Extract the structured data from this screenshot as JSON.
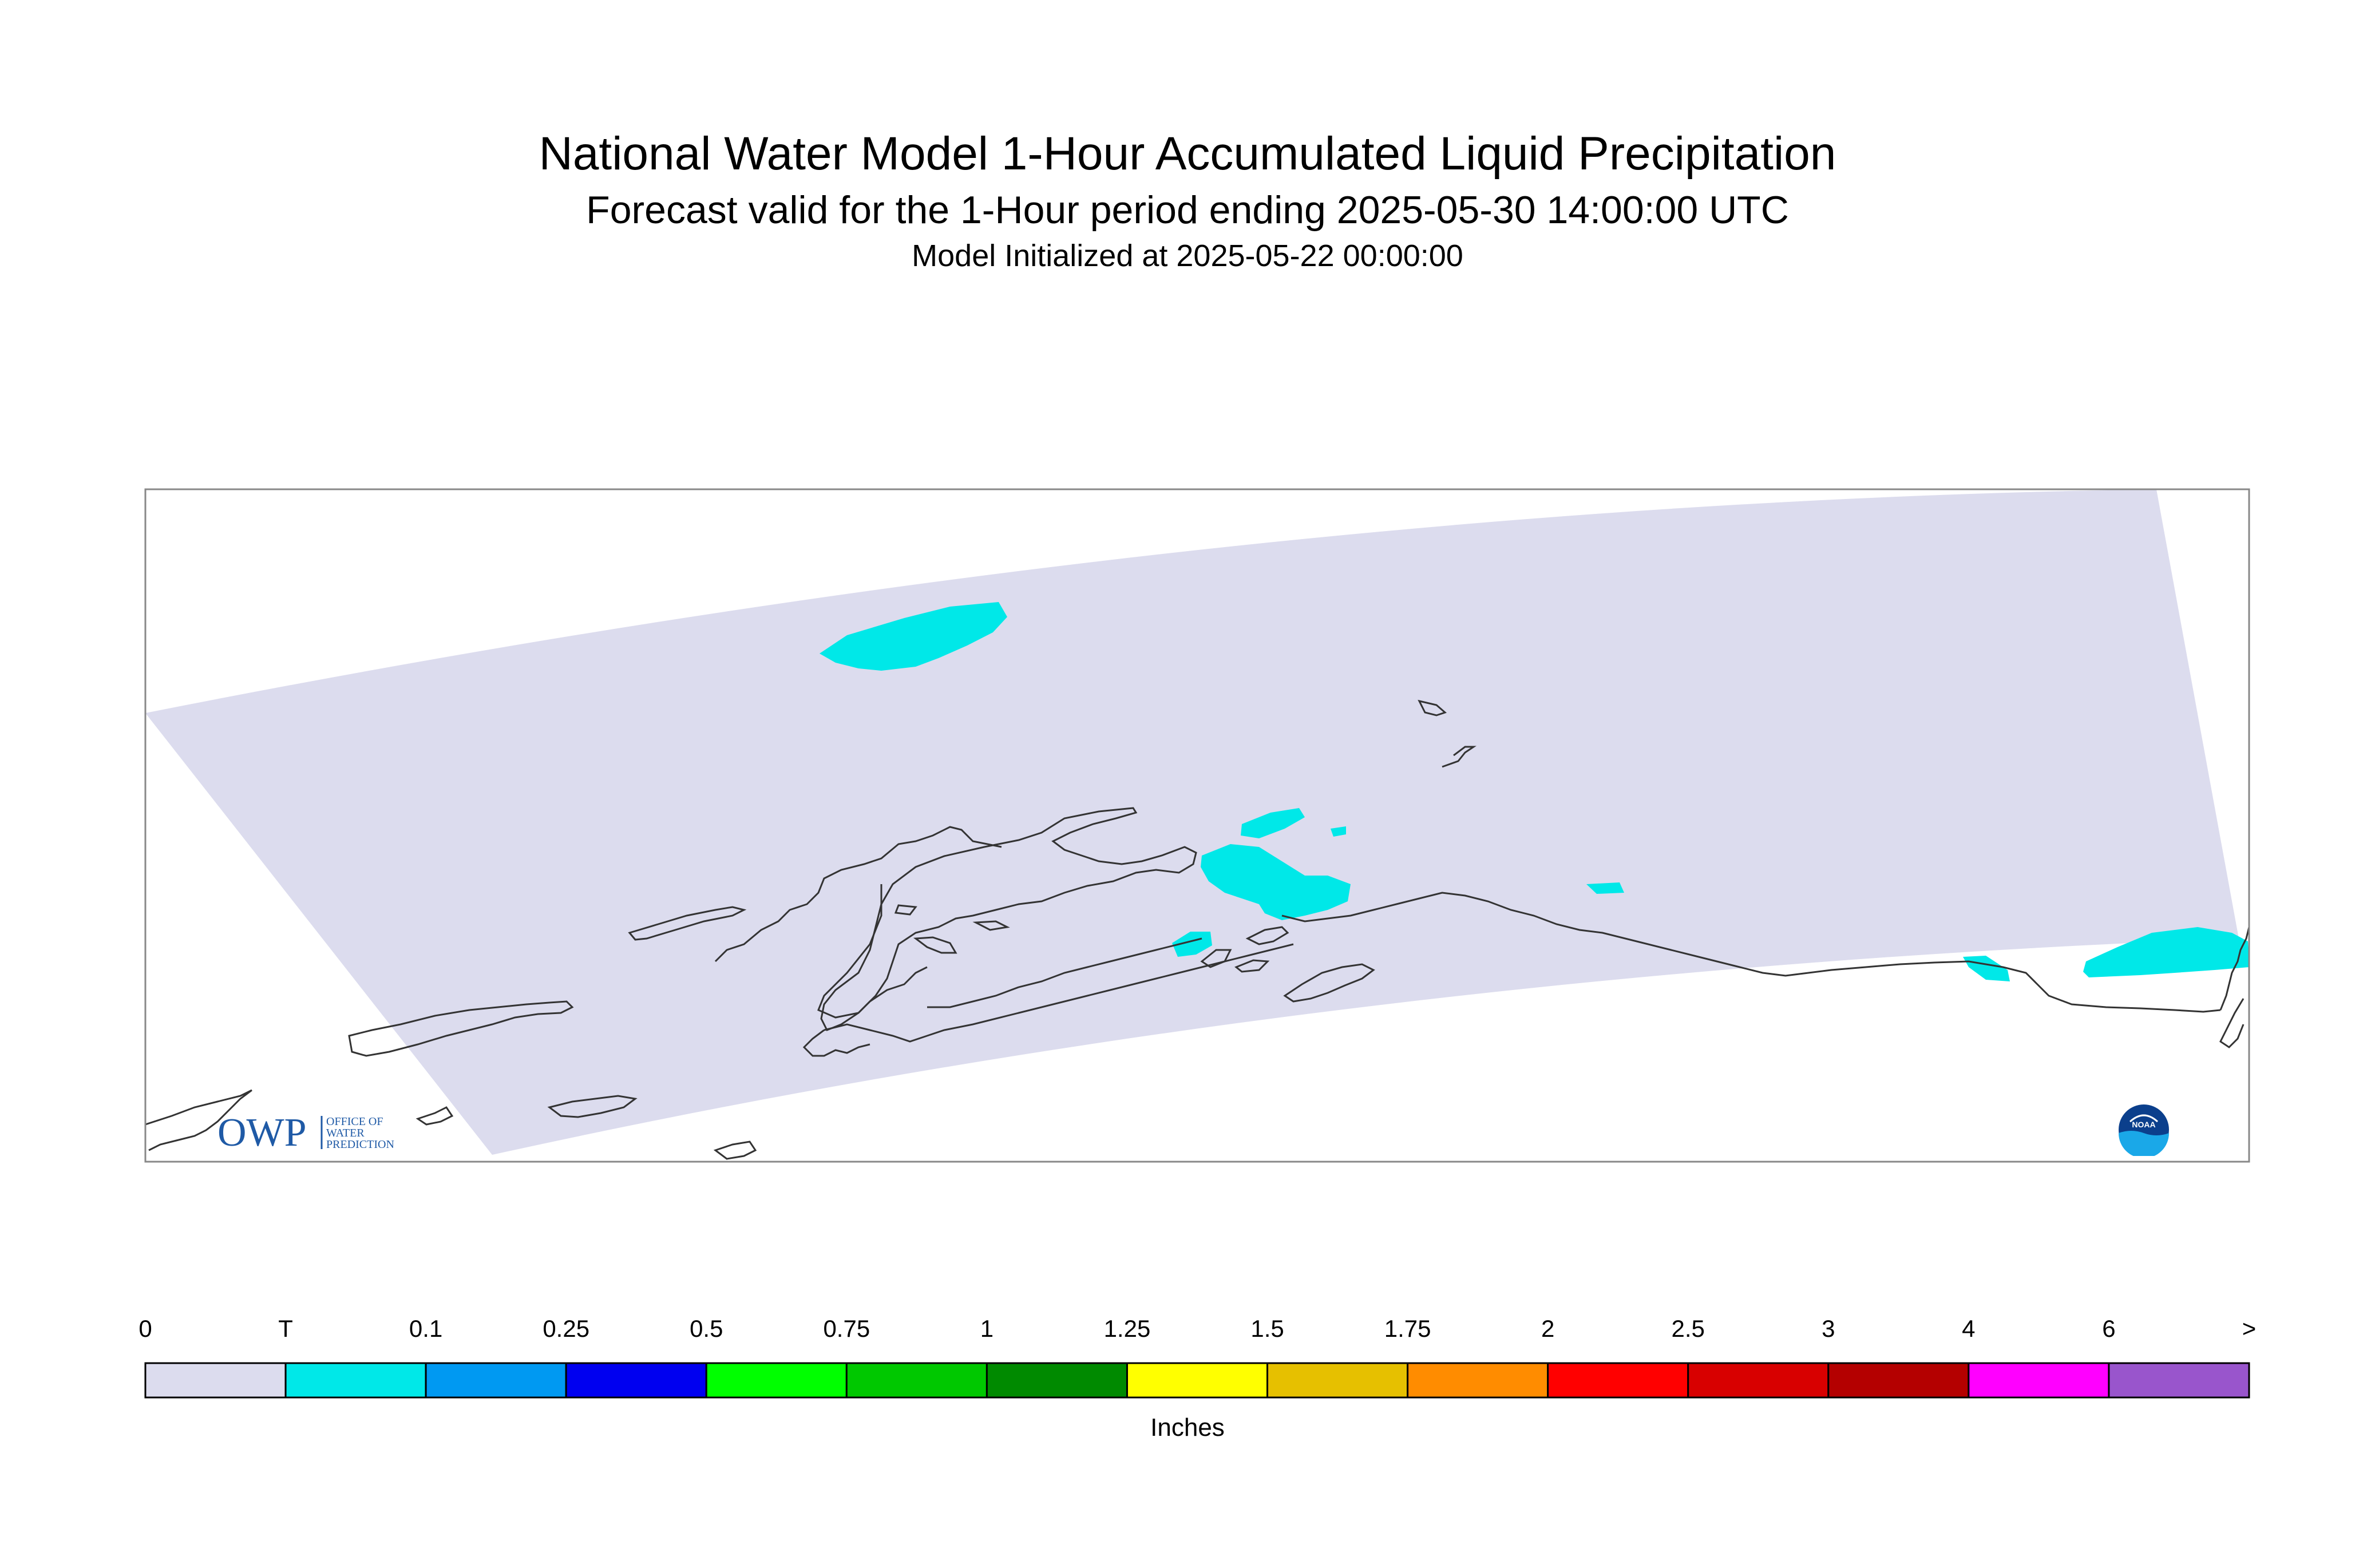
{
  "title": "National Water Model 1-Hour Accumulated Liquid Precipitation",
  "subtitle": "Forecast valid for the 1-Hour period ending 2025-05-30 14:00:00 UTC",
  "init_line": "Model Initialized at 2025-05-22 00:00:00",
  "legend": {
    "units": "Inches",
    "labels": [
      "0",
      "T",
      "0.1",
      "0.25",
      "0.5",
      "0.75",
      "1",
      "1.25",
      "1.5",
      "1.75",
      "2",
      "2.5",
      "3",
      "4",
      "6",
      ">"
    ],
    "colors": [
      "#dcdcee",
      "#00e8e8",
      "#0099f2",
      "#0000f0",
      "#00ff00",
      "#00c800",
      "#008a00",
      "#ffff00",
      "#e6c000",
      "#ff8c00",
      "#ff0000",
      "#d80000",
      "#b40000",
      "#ff00ff",
      "#9955cc"
    ]
  },
  "logos": {
    "owp_mark": "OWP",
    "owp_text": [
      "OFFICE OF",
      "WATER",
      "PREDICTION"
    ],
    "noaa_text": "NOAA"
  },
  "colors": {
    "domain_fill": "#dcdcee",
    "precip_trace": "#00e8e8",
    "coastline": "#333333",
    "frame": "#888888"
  }
}
